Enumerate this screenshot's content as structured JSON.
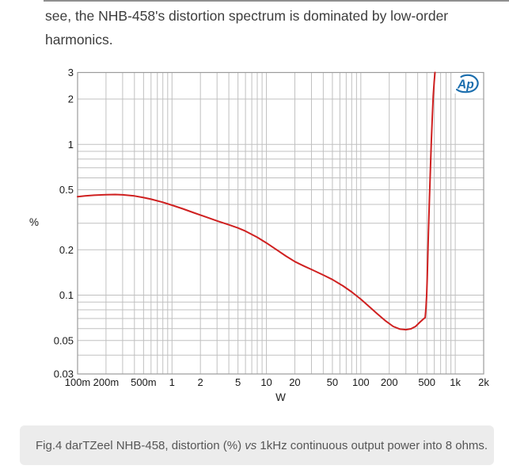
{
  "page": {
    "paragraph_lines": [
      "see, the NHB-458's distortion spectrum is dominated by low-order",
      "harmonics."
    ],
    "caption": {
      "prefix": "Fig.4 darTZeel NHB-458, distortion (%) ",
      "italic": "vs",
      "suffix": " 1kHz continuous output power into 8 ohms."
    }
  },
  "chart_data": {
    "type": "line",
    "title": "",
    "xlabel": "W",
    "ylabel": "%",
    "xscale": "log",
    "yscale": "log",
    "xlim": [
      0.1,
      2000
    ],
    "ylim": [
      0.03,
      3
    ],
    "grid": true,
    "legend_position": "none",
    "logo_text": "Ap",
    "logo_name": "Audio Precision",
    "colors": {
      "curve": "#cf2020",
      "grid": "#c0c0c0",
      "frame": "#9b9b9b",
      "logo_blue": "#1a6dad"
    },
    "xticks": [
      {
        "v": 0.1,
        "label": "100m"
      },
      {
        "v": 0.2,
        "label": "200m"
      },
      {
        "v": 0.5,
        "label": "500m"
      },
      {
        "v": 1,
        "label": "1"
      },
      {
        "v": 2,
        "label": "2"
      },
      {
        "v": 5,
        "label": "5"
      },
      {
        "v": 10,
        "label": "10"
      },
      {
        "v": 20,
        "label": "20"
      },
      {
        "v": 50,
        "label": "50"
      },
      {
        "v": 100,
        "label": "100"
      },
      {
        "v": 200,
        "label": "200"
      },
      {
        "v": 500,
        "label": "500"
      },
      {
        "v": 1000,
        "label": "1k"
      },
      {
        "v": 2000,
        "label": "2k"
      }
    ],
    "yticks": [
      {
        "v": 3,
        "label": "3"
      },
      {
        "v": 2,
        "label": "2"
      },
      {
        "v": 1,
        "label": "1"
      },
      {
        "v": 0.5,
        "label": "0.5"
      },
      {
        "v": 0.2,
        "label": "0.2"
      },
      {
        "v": 0.1,
        "label": "0.1"
      },
      {
        "v": 0.05,
        "label": "0.05"
      },
      {
        "v": 0.03,
        "label": "0.03"
      }
    ],
    "series": [
      {
        "name": "THD+N (%) vs continuous output power (W), 1kHz, 8 ohms",
        "color": "#cf2020",
        "points": [
          [
            0.1,
            0.45
          ],
          [
            0.12,
            0.455
          ],
          [
            0.15,
            0.46
          ],
          [
            0.2,
            0.464
          ],
          [
            0.25,
            0.465
          ],
          [
            0.3,
            0.463
          ],
          [
            0.4,
            0.455
          ],
          [
            0.5,
            0.444
          ],
          [
            0.6,
            0.433
          ],
          [
            0.8,
            0.413
          ],
          [
            1,
            0.395
          ],
          [
            1.3,
            0.374
          ],
          [
            1.7,
            0.352
          ],
          [
            2,
            0.34
          ],
          [
            2.5,
            0.324
          ],
          [
            3,
            0.311
          ],
          [
            4,
            0.293
          ],
          [
            5,
            0.279
          ],
          [
            6,
            0.266
          ],
          [
            8,
            0.242
          ],
          [
            10,
            0.222
          ],
          [
            13,
            0.199
          ],
          [
            16,
            0.182
          ],
          [
            20,
            0.167
          ],
          [
            25,
            0.156
          ],
          [
            30,
            0.148
          ],
          [
            40,
            0.136
          ],
          [
            50,
            0.127
          ],
          [
            65,
            0.115
          ],
          [
            80,
            0.105
          ],
          [
            100,
            0.094
          ],
          [
            120,
            0.085
          ],
          [
            150,
            0.075
          ],
          [
            180,
            0.068
          ],
          [
            220,
            0.062
          ],
          [
            260,
            0.0595
          ],
          [
            300,
            0.059
          ],
          [
            340,
            0.0598
          ],
          [
            380,
            0.062
          ],
          [
            420,
            0.066
          ],
          [
            460,
            0.0695
          ],
          [
            480,
            0.071
          ],
          [
            490,
            0.082
          ],
          [
            498,
            0.1
          ],
          [
            505,
            0.13
          ],
          [
            512,
            0.18
          ],
          [
            520,
            0.26
          ],
          [
            532,
            0.42
          ],
          [
            545,
            0.68
          ],
          [
            558,
            1.05
          ],
          [
            572,
            1.55
          ],
          [
            585,
            2.1
          ],
          [
            598,
            2.6
          ],
          [
            610,
            3.0
          ]
        ]
      }
    ]
  }
}
